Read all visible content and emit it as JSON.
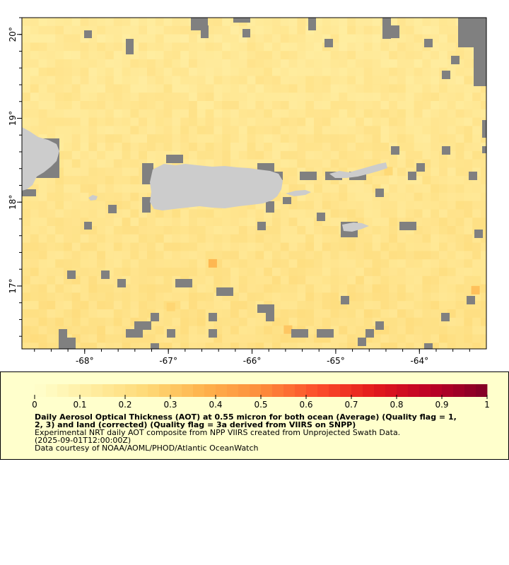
{
  "map": {
    "extent": {
      "lon": [
        -68.75,
        -63.2
      ],
      "lat": [
        16.25,
        20.2
      ]
    },
    "x_ticks": [
      {
        "value": -68,
        "label": "-68°"
      },
      {
        "value": -67,
        "label": "-67°"
      },
      {
        "value": -66,
        "label": "-66°"
      },
      {
        "value": -65,
        "label": "-65°"
      },
      {
        "value": -64,
        "label": "-64°"
      }
    ],
    "y_ticks": [
      {
        "value": 20,
        "label": "20°"
      },
      {
        "value": 19,
        "label": "19°"
      },
      {
        "value": 18,
        "label": "18°"
      },
      {
        "value": 17,
        "label": "17°"
      }
    ],
    "colors": {
      "ocean_base": "#fde9ac",
      "land": "#cccccc",
      "missing": "#808080",
      "frame": "#000000"
    },
    "highlights": [
      {
        "lon": -66.47,
        "lat": 17.27,
        "aot": 0.36
      },
      {
        "lon": -63.33,
        "lat": 16.95,
        "aot": 0.33
      },
      {
        "lon": -65.57,
        "lat": 16.48,
        "aot": 0.31
      },
      {
        "lon": -66.97,
        "lat": 16.75,
        "aot": 0.26
      },
      {
        "lon": -64.37,
        "lat": 18.37,
        "aot": 0.25
      }
    ]
  },
  "legend": {
    "range": [
      0,
      1
    ],
    "tick_labels": [
      "0",
      "0.1",
      "0.2",
      "0.3",
      "0.4",
      "0.5",
      "0.6",
      "0.7",
      "0.8",
      "0.9",
      "1"
    ],
    "palette": [
      "#ffffcc",
      "#ffeda0",
      "#fed976",
      "#feb24c",
      "#fd8d3c",
      "#fc4e2a",
      "#e31a1c",
      "#bd0026",
      "#800026"
    ],
    "title_line1": "Daily Aerosol Optical Thickness (AOT) at 0.55 micron for both ocean (Average) (Quality flag = 1,",
    "title_line2": "2, 3) and land (corrected) (Quality flag = 3a derived from VIIRS on SNPP)",
    "description": "Experimental NRT daily AOT composite from NPP VIIRS created from Unprojected Swath Data.",
    "time": "(2025-09-01T12:00:00Z)",
    "credit": "Data courtesy of NOAA/AOML/PHOD/Atlantic OceanWatch"
  }
}
